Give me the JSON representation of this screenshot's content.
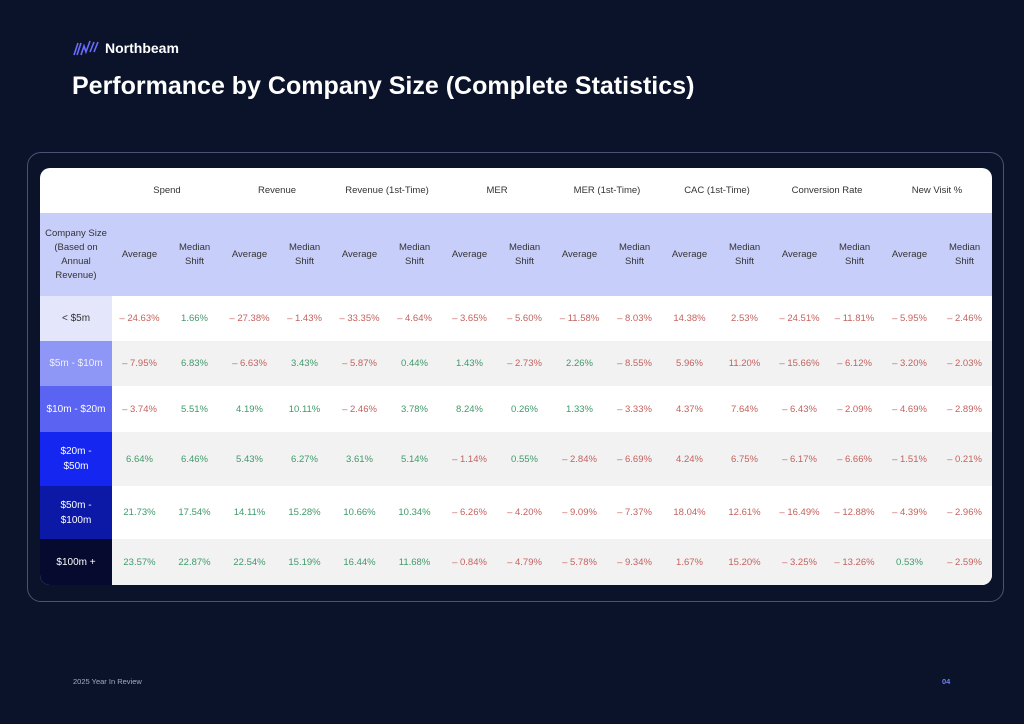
{
  "brand": {
    "name": "Northbeam",
    "accent": "#5b5cf6"
  },
  "title": "Performance by Company Size (Complete Statistics)",
  "table": {
    "row_header_label": "Company Size (Based on Annual Revenue)",
    "groups": [
      "Spend",
      "Revenue",
      "Revenue (1st-Time)",
      "MER",
      "MER (1st-Time)",
      "CAC (1st-Time)",
      "Conversion Rate",
      "New Visit %"
    ],
    "sub_labels": [
      "Average",
      "Median Shift"
    ],
    "colors": {
      "negative": "#c4625e",
      "positive": "#3f9a6a",
      "header_bg": "#c8cefa"
    },
    "rows": [
      {
        "label": "< $5m",
        "bg": "#e4e6fc",
        "fg": "#333333",
        "values": [
          "– 24.63%",
          "1.66%",
          "– 27.38%",
          "– 1.43%",
          "– 33.35%",
          "– 4.64%",
          "– 3.65%",
          "– 5.60%",
          "– 11.58%",
          "– 8.03%",
          "14.38%",
          "2.53%",
          "– 24.51%",
          "– 11.81%",
          "– 5.95%",
          "– 2.46%"
        ]
      },
      {
        "label": "$5m - $10m",
        "bg": "#8e96f6",
        "fg": "#eef0ff",
        "values": [
          "– 7.95%",
          "6.83%",
          "– 6.63%",
          "3.43%",
          "– 5.87%",
          "0.44%",
          "1.43%",
          "– 2.73%",
          "2.26%",
          "– 8.55%",
          "5.96%",
          "11.20%",
          "– 15.66%",
          "– 6.12%",
          "– 3.20%",
          "– 2.03%"
        ]
      },
      {
        "label": "$10m - $20m",
        "bg": "#5a63f2",
        "fg": "#ffffff",
        "values": [
          "– 3.74%",
          "5.51%",
          "4.19%",
          "10.11%",
          "– 2.46%",
          "3.78%",
          "8.24%",
          "0.26%",
          "1.33%",
          "– 3.33%",
          "4.37%",
          "7.64%",
          "– 6.43%",
          "– 2.09%",
          "– 4.69%",
          "– 2.89%"
        ]
      },
      {
        "label": "$20m - $50m",
        "bg": "#1426f0",
        "fg": "#ffffff",
        "values": [
          "6.64%",
          "6.46%",
          "5.43%",
          "6.27%",
          "3.61%",
          "5.14%",
          "– 1.14%",
          "0.55%",
          "– 2.84%",
          "– 6.69%",
          "4.24%",
          "6.75%",
          "– 6.17%",
          "– 6.66%",
          "– 1.51%",
          "– 0.21%"
        ]
      },
      {
        "label": "$50m - $100m",
        "bg": "#0c19a6",
        "fg": "#ffffff",
        "values": [
          "21.73%",
          "17.54%",
          "14.11%",
          "15.28%",
          "10.66%",
          "10.34%",
          "– 6.26%",
          "– 4.20%",
          "– 9.09%",
          "– 7.37%",
          "18.04%",
          "12.61%",
          "– 16.49%",
          "– 12.88%",
          "– 4.39%",
          "– 2.96%"
        ]
      },
      {
        "label": "$100m +",
        "bg": "#060a2e",
        "fg": "#ffffff",
        "values": [
          "23.57%",
          "22.87%",
          "22.54%",
          "15.19%",
          "16.44%",
          "11.68%",
          "– 0.84%",
          "– 4.79%",
          "– 5.78%",
          "– 9.34%",
          "1.67%",
          "15.20%",
          "– 3.25%",
          "– 13.26%",
          "0.53%",
          "– 2.59%"
        ]
      }
    ],
    "red_positive_groups": [
      "CAC (1st-Time)"
    ]
  },
  "footer": {
    "left": "2025 Year In Review",
    "page": "04"
  }
}
